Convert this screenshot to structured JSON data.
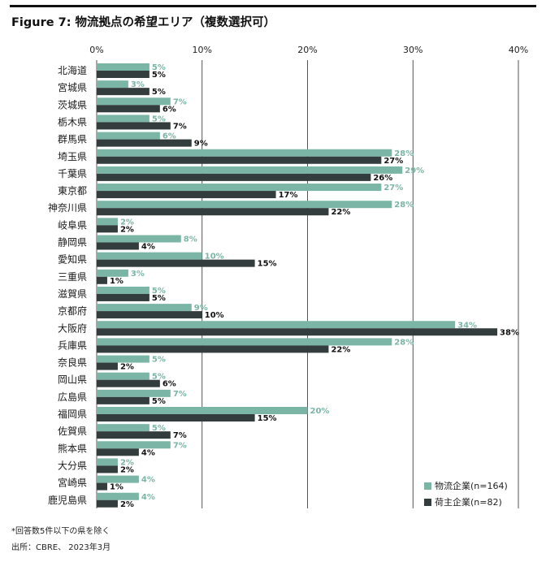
{
  "title": "Figure 7: 物流拠点の希望エリア（複数選択可）",
  "footnote": "*回答数5件以下の県を除く",
  "source": "出所：CBRE、 2023年3月",
  "colors": {
    "series1": "#7bb5a6",
    "series2": "#343d3e",
    "label1": "#7bb5a6",
    "label2": "#111111",
    "grid": "#2a2a2a"
  },
  "chart_data": {
    "type": "bar",
    "orientation": "horizontal",
    "xlim": [
      0,
      40
    ],
    "xticks": [
      "0%",
      "10%",
      "20%",
      "30%",
      "40%"
    ],
    "grid": true,
    "legend_position": "bottom-right",
    "categories": [
      "北海道",
      "宮城県",
      "茨城県",
      "栃木県",
      "群馬県",
      "埼玉県",
      "千葉県",
      "東京都",
      "神奈川県",
      "岐阜県",
      "静岡県",
      "愛知県",
      "三重県",
      "滋賀県",
      "京都府",
      "大阪府",
      "兵庫県",
      "奈良県",
      "岡山県",
      "広島県",
      "福岡県",
      "佐賀県",
      "熊本県",
      "大分県",
      "宮崎県",
      "鹿児島県"
    ],
    "series": [
      {
        "name": "物流企業(n=164)",
        "values": [
          5,
          3,
          7,
          5,
          6,
          28,
          29,
          27,
          28,
          2,
          8,
          10,
          3,
          5,
          9,
          34,
          28,
          5,
          5,
          7,
          20,
          5,
          7,
          2,
          4,
          4
        ],
        "labels": [
          "5%",
          "3%",
          "7%",
          "5%",
          "6%",
          "28%",
          "29%",
          "27%",
          "28%",
          "2%",
          "8%",
          "10%",
          "3%",
          "5%",
          "9%",
          "34%",
          "28%",
          "5%",
          "5%",
          "7%",
          "20%",
          "5%",
          "7%",
          "2%",
          "4%",
          "4%"
        ]
      },
      {
        "name": "荷主企業(n=82)",
        "values": [
          5,
          5,
          6,
          7,
          9,
          27,
          26,
          17,
          22,
          2,
          4,
          15,
          1,
          5,
          10,
          38,
          22,
          2,
          6,
          5,
          15,
          7,
          4,
          2,
          1,
          2
        ],
        "labels": [
          "5%",
          "5%",
          "6%",
          "7%",
          "9%",
          "27%",
          "26%",
          "17%",
          "22%",
          "2%",
          "4%",
          "15%",
          "1%",
          "5%",
          "10%",
          "38%",
          "22%",
          "2%",
          "6%",
          "5%",
          "15%",
          "7%",
          "4%",
          "2%",
          "1%",
          "2%"
        ]
      }
    ]
  }
}
